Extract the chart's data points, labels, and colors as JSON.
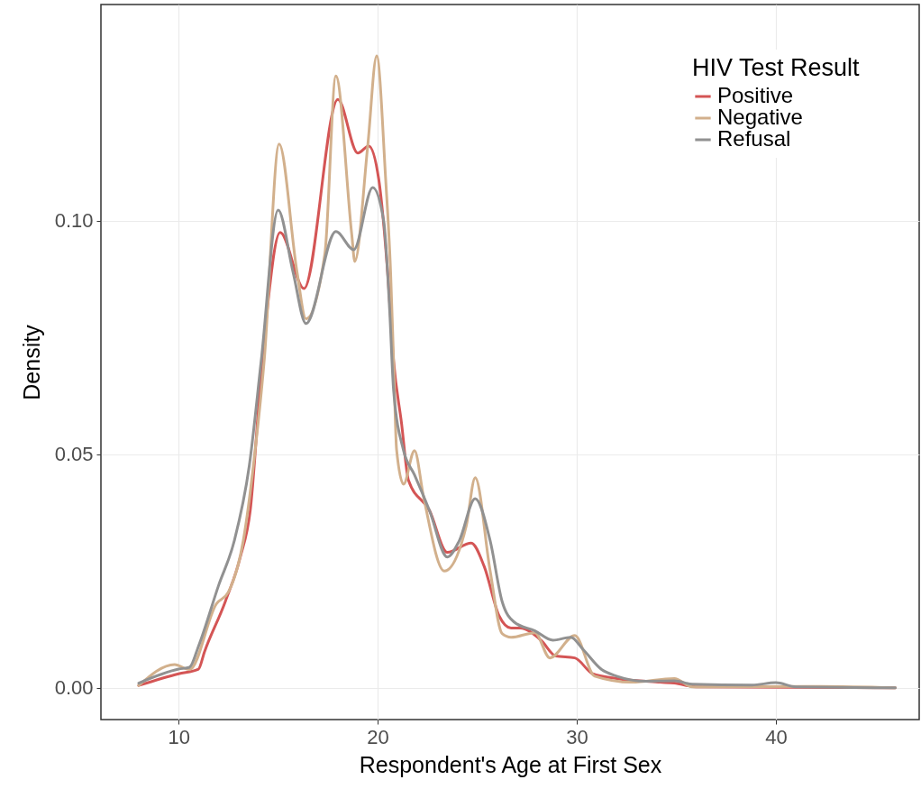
{
  "chart_data": {
    "type": "line",
    "xlabel": "Respondent's Age at First Sex",
    "ylabel": "Density",
    "legend_title": "HIV Test Result",
    "legend": "top right",
    "grid": true,
    "line_style": "solid",
    "marker": "none",
    "xlim": [
      6.1,
      47.2
    ],
    "xticks": [
      10,
      20,
      30,
      40
    ],
    "ylim": [
      -0.0068,
      0.1463
    ],
    "yticks": [
      {
        "value": 0,
        "label": "0.00"
      },
      {
        "value": 0.05,
        "label": "0.05"
      },
      {
        "value": 0.1,
        "label": "0.10"
      }
    ],
    "series": [
      {
        "name": "Positive",
        "color": "#d45555",
        "x": [
          8,
          10,
          11,
          11.3,
          12.35,
          13.1,
          13.6,
          14.2,
          15.1,
          16.3,
          18.0,
          19.0,
          19.55,
          20.05,
          20.5,
          20.8,
          21.2,
          21.55,
          22.6,
          23.5,
          24.7,
          25.35,
          26.1,
          26.7,
          27.15,
          28.2,
          28.95,
          29.9,
          30.8,
          32.0,
          34.2,
          34.9,
          36.0,
          46
        ],
        "values": [
          0.0005,
          0.003,
          0.004,
          0.0077,
          0.0185,
          0.028,
          0.038,
          0.07,
          0.0975,
          0.0855,
          0.126,
          0.1145,
          0.116,
          0.109,
          0.089,
          0.07,
          0.0566,
          0.0444,
          0.038,
          0.029,
          0.031,
          0.026,
          0.0154,
          0.0128,
          0.0128,
          0.0102,
          0.0068,
          0.0064,
          0.003,
          0.002,
          0.0012,
          0.001,
          0.0002,
          0
        ]
      },
      {
        "name": "Negative",
        "color": "#d2b08c",
        "x": [
          8,
          9.8,
          10.55,
          11.9,
          12.5,
          13.25,
          13.85,
          14.3,
          15.05,
          15.95,
          16.4,
          17.35,
          17.9,
          18.7,
          18.85,
          19.5,
          19.95,
          20.4,
          20.65,
          20.8,
          20.95,
          21.3,
          21.85,
          22.3,
          23.35,
          24.45,
          24.9,
          25.65,
          26.25,
          26.7,
          27.9,
          28.65,
          29.9,
          30.9,
          32.75,
          34.9,
          35.8,
          42.2,
          46
        ],
        "values": [
          0.0005,
          0.005,
          0.0039,
          0.018,
          0.0205,
          0.0315,
          0.051,
          0.07,
          0.1164,
          0.089,
          0.079,
          0.093,
          0.131,
          0.097,
          0.0913,
          0.116,
          0.1353,
          0.109,
          0.089,
          0.07,
          0.051,
          0.0436,
          0.0508,
          0.041,
          0.025,
          0.0347,
          0.045,
          0.025,
          0.0116,
          0.0108,
          0.0118,
          0.0064,
          0.0112,
          0.0025,
          0.0012,
          0.002,
          0.0002,
          0.0003,
          0
        ]
      },
      {
        "name": "Refusal",
        "color": "#919191",
        "x": [
          8,
          10,
          10.55,
          11.0,
          12.0,
          12.8,
          13.55,
          14.15,
          15.0,
          15.75,
          16.4,
          17.9,
          18.8,
          19.75,
          20.3,
          20.6,
          20.8,
          21.3,
          21.85,
          22.6,
          23.5,
          24.1,
          24.9,
          25.65,
          26.25,
          26.85,
          27.9,
          28.8,
          29.7,
          30.3,
          31.25,
          32.0,
          33.5,
          34.9,
          35.8,
          38.8,
          40.0,
          41.0,
          46
        ],
        "values": [
          0.001,
          0.004,
          0.0044,
          0.0089,
          0.0218,
          0.0315,
          0.0475,
          0.07,
          0.1023,
          0.089,
          0.078,
          0.0977,
          0.0938,
          0.1071,
          0.1,
          0.081,
          0.0637,
          0.0508,
          0.0456,
          0.038,
          0.028,
          0.0315,
          0.0405,
          0.0315,
          0.0185,
          0.0141,
          0.0122,
          0.0102,
          0.0108,
          0.0083,
          0.0039,
          0.0025,
          0.0014,
          0.0015,
          0.0008,
          0.0006,
          0.0011,
          0.0002,
          0
        ]
      }
    ]
  }
}
